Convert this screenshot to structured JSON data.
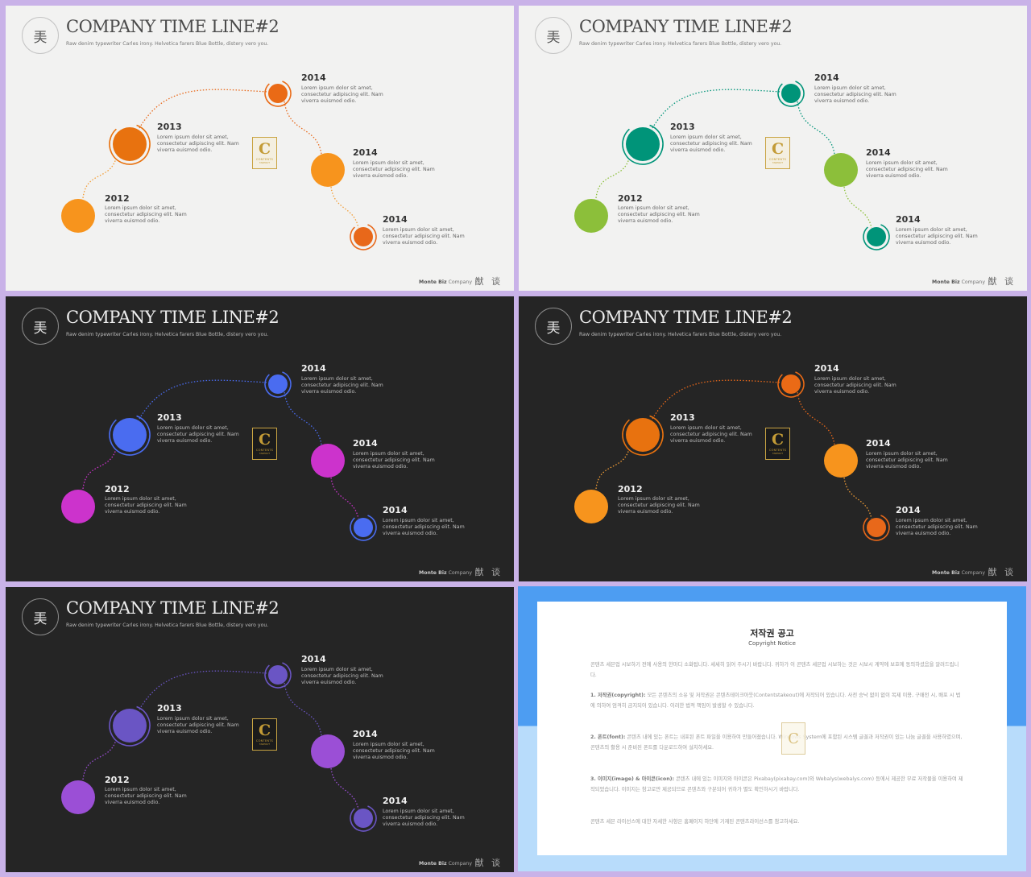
{
  "header": {
    "logo_glyph": "㺯",
    "title": "COMPANY TIME LINE#2",
    "subtitle": "Raw denim typewriter Carles irony. Helvetica farers Blue Bottle, distery vero you."
  },
  "items": [
    {
      "year": "2012",
      "lines": [
        "Lorem ipsum dolor sit amet,",
        "consectetur adipiscing elit. Nam",
        "viverra euismod odio."
      ]
    },
    {
      "year": "2013",
      "lines": [
        "Lorem ipsum dolor sit amet,",
        "consectetur adipiscing elit. Nam",
        "viverra euismod odio."
      ]
    },
    {
      "year": "2014",
      "lines": [
        "Lorem ipsum dolor sit amet,",
        "consectetur adipiscing elit. Nam",
        "viverra euismod odio."
      ]
    },
    {
      "year": "2014",
      "lines": [
        "Lorem ipsum dolor sit amet,",
        "consectetur adipiscing elit. Nam",
        "viverra euismod odio."
      ]
    },
    {
      "year": "2014",
      "lines": [
        "Lorem ipsum dolor sit amet,",
        "consectetur adipiscing elit. Nam",
        "viverra euismod odio."
      ]
    }
  ],
  "badge": {
    "letter": "C",
    "text": "CONTENTS",
    "sub": "TAKEOUT"
  },
  "footer": {
    "brand": "Monte Biz",
    "company": "Company",
    "glyphs": "猷 谈"
  },
  "themes": [
    {
      "mode": "light",
      "c2012": "#f7941d",
      "c2013": "#e8720f",
      "c2014a": "#ea6a16",
      "c2014b": "#f7941d",
      "c2014c": "#e8681a",
      "line1": "#f29d36",
      "line2": "#e8681a"
    },
    {
      "mode": "light",
      "c2012": "#8cbf3a",
      "c2013": "#009479",
      "c2014a": "#009479",
      "c2014b": "#8cbf3a",
      "c2014c": "#009479",
      "line1": "#8cbf3a",
      "line2": "#009479"
    },
    {
      "mode": "dark",
      "c2012": "#cc33cc",
      "c2013": "#4a6cf0",
      "c2014a": "#4a6cf0",
      "c2014b": "#cc33cc",
      "c2014c": "#4a6cf0",
      "line1": "#cc33cc",
      "line2": "#4a6cf0"
    },
    {
      "mode": "dark",
      "c2012": "#f7941d",
      "c2013": "#e8720f",
      "c2014a": "#ea6a16",
      "c2014b": "#f7941d",
      "c2014c": "#e8681a",
      "line1": "#f29d36",
      "line2": "#e8681a"
    },
    {
      "mode": "dark",
      "c2012": "#9b4fd6",
      "c2013": "#6a55c4",
      "c2014a": "#6a55c4",
      "c2014b": "#9b4fd6",
      "c2014c": "#6a55c4",
      "line1": "#9b4fd6",
      "line2": "#6a55c4"
    }
  ],
  "notice": {
    "title": "저작권 공고",
    "subtitle": "Copyright Notice",
    "p0": "콘텐츠 세븐업 시보하기 전에 사용의 한마디 소화됩니다. 세세히 읽어 주시기 바랍니다. 귀하가 이 콘텐츠 세븐업 시보하는 것은 시보시 계약에 보호에 동의하셨음을 알려드립니다.",
    "p1_label": "1. 저작권(copyright):",
    "p1": " 모든 콘텐츠의 소유 및 저작권은 콘텐츠테이크아웃(Contentstakeout)에 저작되어 있습니다. 사전 승낙 없이 없이 복제 이용, 구매전 시, 배포 시 법에 의하여 엄격히 금지되어 있습니다. 이러한 법적 책임이 발생할 수 있습니다.",
    "p2_label": "2. 폰트(font):",
    "p2": " 콘텐츠 내에 있는 폰트는 내포된 폰트 파일을 이용하여 만들어졌습니다. Windows System에 포함된 시스템 글꼴과 저작권이 있는 나눔 글꼴을 사용하였으며, 콘텐츠의 활용 시 준비된 폰트를 다운로드하여 설치하세요.",
    "p3_label": "3. 이미지(image) & 아이콘(icon):",
    "p3": " 콘텐츠 내에 있는 이미지와 아이콘은 Pixabay(pixabay.com)와 Webalys(webalys.com) 등에서 제공한 무료 저작물을 이용하여 제작되었습니다. 이미지는 참고로만 제공되므로 콘텐츠와 구분되어 귀하가 별도 확인하시기 바랍니다.",
    "p4": "콘텐츠 세븐 라이선스에 대한 자세한 사항은 홈페이지 하단에 기재된 콘텐츠라이선스를 참고하세요."
  }
}
